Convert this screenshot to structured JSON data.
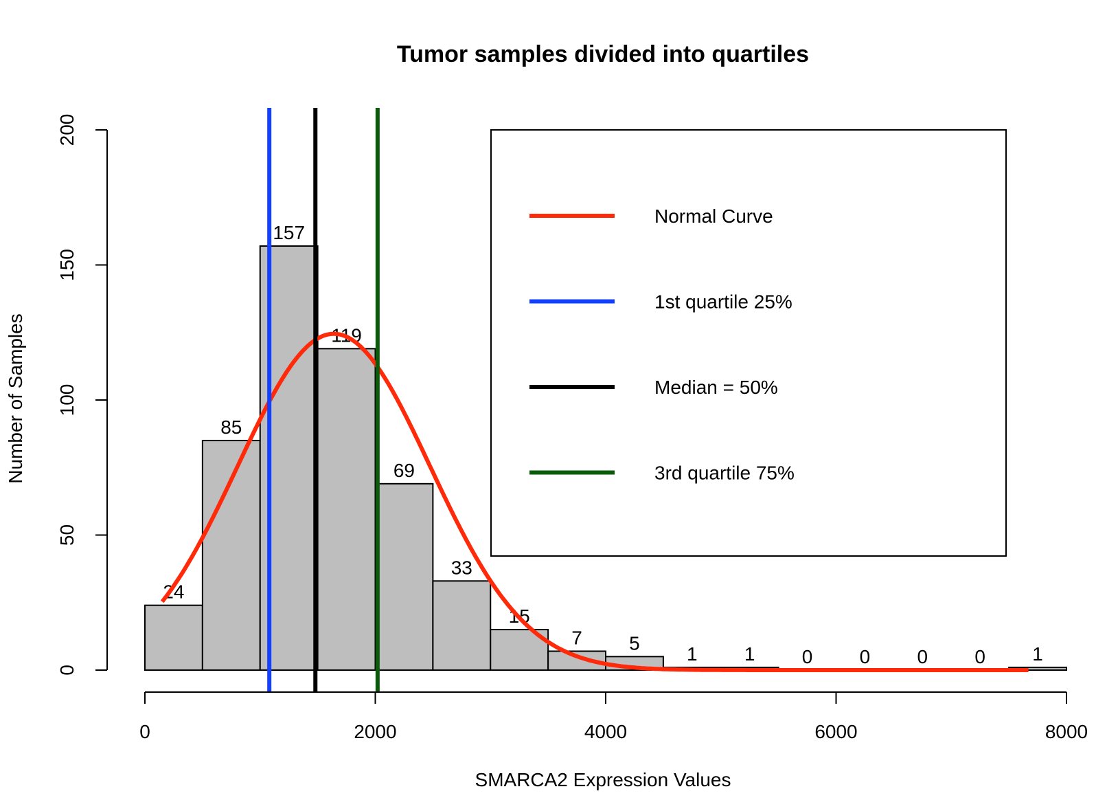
{
  "chart_data": {
    "type": "bar",
    "title": "Tumor samples divided into quartiles",
    "xlabel": "SMARCA2 Expression Values",
    "ylabel": "Number of Samples",
    "xlim": [
      0,
      8000
    ],
    "ylim": [
      0,
      200
    ],
    "x_ticks": [
      0,
      2000,
      4000,
      6000,
      8000
    ],
    "y_ticks": [
      0,
      50,
      100,
      150,
      200
    ],
    "x_tick_labels": [
      "0",
      "2000",
      "4000",
      "6000",
      "8000"
    ],
    "y_tick_labels": [
      "0",
      "50",
      "100",
      "150",
      "200"
    ],
    "bins": [
      {
        "start": 0,
        "end": 500,
        "count": 24
      },
      {
        "start": 500,
        "end": 1000,
        "count": 85
      },
      {
        "start": 1000,
        "end": 1500,
        "count": 157
      },
      {
        "start": 1500,
        "end": 2000,
        "count": 119
      },
      {
        "start": 2000,
        "end": 2500,
        "count": 69
      },
      {
        "start": 2500,
        "end": 3000,
        "count": 33
      },
      {
        "start": 3000,
        "end": 3500,
        "count": 15
      },
      {
        "start": 3500,
        "end": 4000,
        "count": 7
      },
      {
        "start": 4000,
        "end": 4500,
        "count": 5
      },
      {
        "start": 4500,
        "end": 5000,
        "count": 1
      },
      {
        "start": 5000,
        "end": 5500,
        "count": 1
      },
      {
        "start": 5500,
        "end": 6000,
        "count": 0
      },
      {
        "start": 6000,
        "end": 6500,
        "count": 0
      },
      {
        "start": 6500,
        "end": 7000,
        "count": 0
      },
      {
        "start": 7000,
        "end": 7500,
        "count": 0
      },
      {
        "start": 7500,
        "end": 8000,
        "count": 1
      }
    ],
    "bar_color": "#bebebe",
    "normal_curve": {
      "name": "Normal Curve",
      "color": "#ff2a0a",
      "mean": 1640,
      "sd": 835,
      "peak": 124.5,
      "x_range": [
        150,
        7670
      ]
    },
    "vertical_lines": [
      {
        "name": "1st quartile 25%",
        "x": 1080,
        "color": "#1240ff"
      },
      {
        "name": "Median = 50%",
        "x": 1480,
        "color": "#000000"
      },
      {
        "name": "3rd quartile 75%",
        "x": 2020,
        "color": "#0a5c0a"
      }
    ],
    "legend": {
      "placement": "top-right",
      "entries": [
        {
          "label": "Normal Curve",
          "color": "#ff2a0a"
        },
        {
          "label": "1st quartile 25%",
          "color": "#1240ff"
        },
        {
          "label": "Median = 50%",
          "color": "#000000"
        },
        {
          "label": "3rd quartile 75%",
          "color": "#0a5c0a"
        }
      ]
    }
  }
}
